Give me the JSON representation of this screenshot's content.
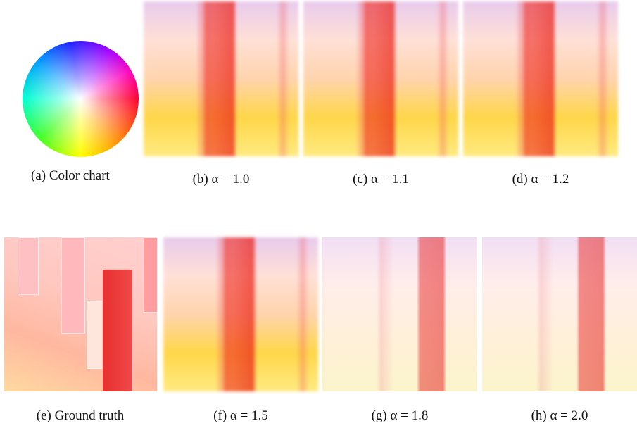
{
  "figure": {
    "panels": [
      {
        "caption": "(a) Color chart"
      },
      {
        "caption": "(b) α = 1.0"
      },
      {
        "caption": "(c) α = 1.1"
      },
      {
        "caption": "(d) α = 1.2"
      },
      {
        "caption": "(e) Ground truth"
      },
      {
        "caption": "(f) α = 1.5"
      },
      {
        "caption": "(g) α = 1.8"
      },
      {
        "caption": "(h) α = 2.0"
      }
    ]
  }
}
